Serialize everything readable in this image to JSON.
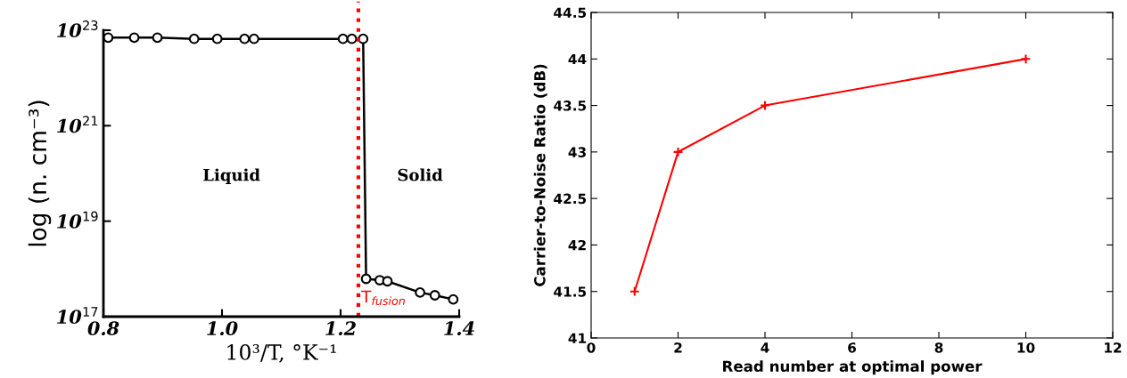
{
  "chart_data": [
    {
      "type": "line",
      "xlabel": "10³/T, °K⁻¹",
      "ylabel": "log (n. cm⁻³)",
      "log": "y",
      "marker": "circle",
      "line_style": "solid",
      "grid": false,
      "series": [
        {
          "color": "#000000",
          "x": [
            0.808,
            0.852,
            0.891,
            0.953,
            0.992,
            1.038,
            1.054,
            1.204,
            1.219,
            1.238,
            1.243,
            1.266,
            1.279,
            1.334,
            1.359,
            1.39
          ],
          "values": [
            7e+22,
            7e+22,
            7e+22,
            6.6e+22,
            6.6e+22,
            6.6e+22,
            6.6e+22,
            6.6e+22,
            6.6e+22,
            6.6e+22,
            6.2e+17,
            5.8e+17,
            5.5e+17,
            3.2e+17,
            2.8e+17,
            2.3e+17
          ]
        }
      ],
      "xlim": [
        0.8,
        1.4
      ],
      "xticks": [
        0.8,
        {
          "value": 1.0,
          "label": "1.0"
        },
        1.2,
        1.4
      ],
      "ylim": [
        1e+17,
        1e+23
      ],
      "yticks": [
        {
          "value": 1e+17,
          "label": "10$^{17}$"
        },
        {
          "value": 1e+19,
          "label": "10$^{19}$"
        },
        {
          "value": 1e+21,
          "label": "10$^{21}$"
        },
        {
          "value": 1e+23,
          "label": "10$^{23}$"
        }
      ],
      "ref_lines": [
        {
          "axis": "x",
          "value": 1.23,
          "label": "T$_{fusion}$",
          "color": "#ff0000",
          "line_style": "dotted"
        }
      ],
      "annotations": [
        "Liquid",
        "Solid"
      ]
    },
    {
      "type": "line",
      "xlabel": "Read number at optimal power",
      "ylabel": "Carrier-to-Noise Ratio (dB)",
      "marker": "cross",
      "line_style": "solid",
      "grid": false,
      "series": [
        {
          "color": "#ff0000",
          "x": [
            1,
            2,
            4,
            10
          ],
          "values": [
            41.5,
            43,
            43.5,
            44
          ]
        }
      ],
      "xlim": [
        0,
        12
      ],
      "xticks": [
        0,
        2,
        4,
        6,
        8,
        10,
        12
      ],
      "ylim": [
        41,
        44.5
      ],
      "yticks": [
        41,
        41.5,
        42,
        42.5,
        43,
        43.5,
        44,
        44.5
      ]
    }
  ]
}
